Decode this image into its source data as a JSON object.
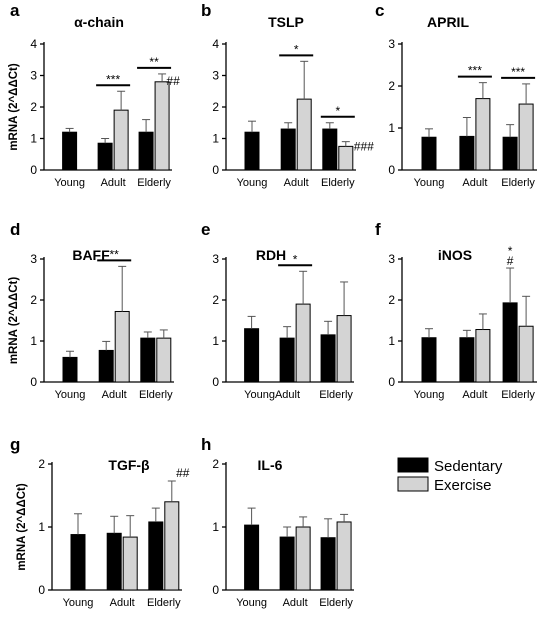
{
  "chart_data": [
    {
      "type": "bar",
      "letter": "a",
      "title": "α-chain",
      "ylabel": "mRNA (2^ΔΔCt)",
      "ylim": [
        0,
        4
      ],
      "yticks": [
        0,
        1,
        2,
        3,
        4
      ],
      "categories": [
        "Young",
        "Adult",
        "Elderly"
      ],
      "series": [
        {
          "name": "Sedentary",
          "values": [
            1.2,
            0.85,
            1.2
          ],
          "errors": [
            0.12,
            0.15,
            0.4
          ]
        },
        {
          "name": "Exercise",
          "values": [
            null,
            1.9,
            2.8
          ],
          "errors": [
            null,
            0.6,
            0.25
          ]
        }
      ],
      "sig_bars": [
        {
          "category": 1,
          "text": "***"
        },
        {
          "category": 2,
          "text": "**"
        }
      ],
      "marks": [
        {
          "category": 2,
          "series": 1,
          "text": "##"
        }
      ]
    },
    {
      "type": "bar",
      "letter": "b",
      "title": "TSLP",
      "ylabel": "",
      "ylim": [
        0,
        4
      ],
      "yticks": [
        0,
        1,
        2,
        3,
        4
      ],
      "categories": [
        "Young",
        "Adult",
        "Elderly"
      ],
      "series": [
        {
          "name": "Sedentary",
          "values": [
            1.2,
            1.3,
            1.3
          ],
          "errors": [
            0.35,
            0.2,
            0.2
          ]
        },
        {
          "name": "Exercise",
          "values": [
            null,
            2.25,
            0.75
          ],
          "errors": [
            null,
            1.2,
            0.15
          ]
        }
      ],
      "sig_bars": [
        {
          "category": 1,
          "text": "*"
        },
        {
          "category": 2,
          "text": "*"
        }
      ],
      "marks": [
        {
          "category": 2,
          "series": 1,
          "text": "###"
        }
      ]
    },
    {
      "type": "bar",
      "letter": "c",
      "title": "APRIL",
      "ylabel": "",
      "ylim": [
        0,
        3
      ],
      "yticks": [
        0,
        1,
        2,
        3
      ],
      "categories": [
        "Young",
        "Adult",
        "Elderly"
      ],
      "series": [
        {
          "name": "Sedentary",
          "values": [
            0.78,
            0.8,
            0.78
          ],
          "errors": [
            0.2,
            0.45,
            0.3
          ]
        },
        {
          "name": "Exercise",
          "values": [
            null,
            1.7,
            1.57
          ],
          "errors": [
            null,
            0.38,
            0.48
          ]
        }
      ],
      "sig_bars": [
        {
          "category": 1,
          "text": "***"
        },
        {
          "category": 2,
          "text": "***"
        }
      ],
      "marks": []
    },
    {
      "type": "bar",
      "letter": "d",
      "title": "BAFF",
      "ylabel": "mRNA (2^ΔΔCt)",
      "ylim": [
        0,
        3
      ],
      "yticks": [
        0,
        1,
        2,
        3
      ],
      "categories": [
        "Young",
        "Adult",
        "Elderly"
      ],
      "series": [
        {
          "name": "Sedentary",
          "values": [
            0.6,
            0.77,
            1.07
          ],
          "errors": [
            0.15,
            0.22,
            0.15
          ]
        },
        {
          "name": "Exercise",
          "values": [
            null,
            1.72,
            1.07
          ],
          "errors": [
            null,
            1.1,
            0.2
          ]
        }
      ],
      "sig_bars": [
        {
          "category": 1,
          "text": "**"
        }
      ],
      "marks": []
    },
    {
      "type": "bar",
      "letter": "e",
      "title": "RDH",
      "ylabel": "",
      "ylim": [
        0,
        3
      ],
      "yticks": [
        0,
        1,
        2,
        3
      ],
      "categories": [
        "Young",
        "Adult",
        "Elderly"
      ],
      "category_labels": "YoungAdult",
      "series": [
        {
          "name": "Sedentary",
          "values": [
            1.3,
            1.07,
            1.15
          ],
          "errors": [
            0.3,
            0.28,
            0.33
          ]
        },
        {
          "name": "Exercise",
          "values": [
            null,
            1.9,
            1.62
          ],
          "errors": [
            null,
            0.8,
            0.82
          ]
        }
      ],
      "sig_bars": [
        {
          "category": 1,
          "text": "*"
        }
      ],
      "marks": []
    },
    {
      "type": "bar",
      "letter": "f",
      "title": "iNOS",
      "ylabel": "",
      "ylim": [
        0,
        3
      ],
      "yticks": [
        0,
        1,
        2,
        3
      ],
      "categories": [
        "Young",
        "Adult",
        "Elderly"
      ],
      "series": [
        {
          "name": "Sedentary",
          "values": [
            1.08,
            1.08,
            1.93
          ],
          "errors": [
            0.22,
            0.18,
            0.85
          ]
        },
        {
          "name": "Exercise",
          "values": [
            null,
            1.28,
            1.36
          ],
          "errors": [
            null,
            0.38,
            0.73
          ]
        }
      ],
      "sig_bars": [],
      "marks": [
        {
          "category": 2,
          "series": 0,
          "text": "#",
          "line2": "*"
        }
      ]
    },
    {
      "type": "bar",
      "letter": "g",
      "title": "TGF-β",
      "ylabel": "mRNA (2^ΔΔCt)",
      "ylim": [
        0,
        2
      ],
      "yticks": [
        0,
        1,
        2
      ],
      "categories": [
        "Young",
        "Adult",
        "Elderly"
      ],
      "series": [
        {
          "name": "Sedentary",
          "values": [
            0.88,
            0.9,
            1.08
          ],
          "errors": [
            0.33,
            0.27,
            0.22
          ]
        },
        {
          "name": "Exercise",
          "values": [
            null,
            0.84,
            1.4
          ],
          "errors": [
            null,
            0.34,
            0.33
          ]
        }
      ],
      "sig_bars": [],
      "marks": [
        {
          "category": 2,
          "series": 1,
          "text": "##"
        }
      ]
    },
    {
      "type": "bar",
      "letter": "h",
      "title": "IL-6",
      "ylabel": "",
      "ylim": [
        0,
        2
      ],
      "yticks": [
        0,
        1,
        2
      ],
      "categories": [
        "Young",
        "Adult",
        "Elderly"
      ],
      "series": [
        {
          "name": "Sedentary",
          "values": [
            1.03,
            0.84,
            0.83
          ],
          "errors": [
            0.27,
            0.16,
            0.3
          ]
        },
        {
          "name": "Exercise",
          "values": [
            null,
            1.0,
            1.08
          ],
          "errors": [
            null,
            0.16,
            0.12
          ]
        }
      ],
      "sig_bars": [],
      "marks": []
    }
  ],
  "legend": {
    "items": [
      {
        "label": "Sedentary",
        "color": "#000000"
      },
      {
        "label": "Exercise",
        "color": "#d4d4d4"
      }
    ]
  },
  "colors": {
    "sedentary": "#000000",
    "exercise": "#d4d4d4"
  }
}
